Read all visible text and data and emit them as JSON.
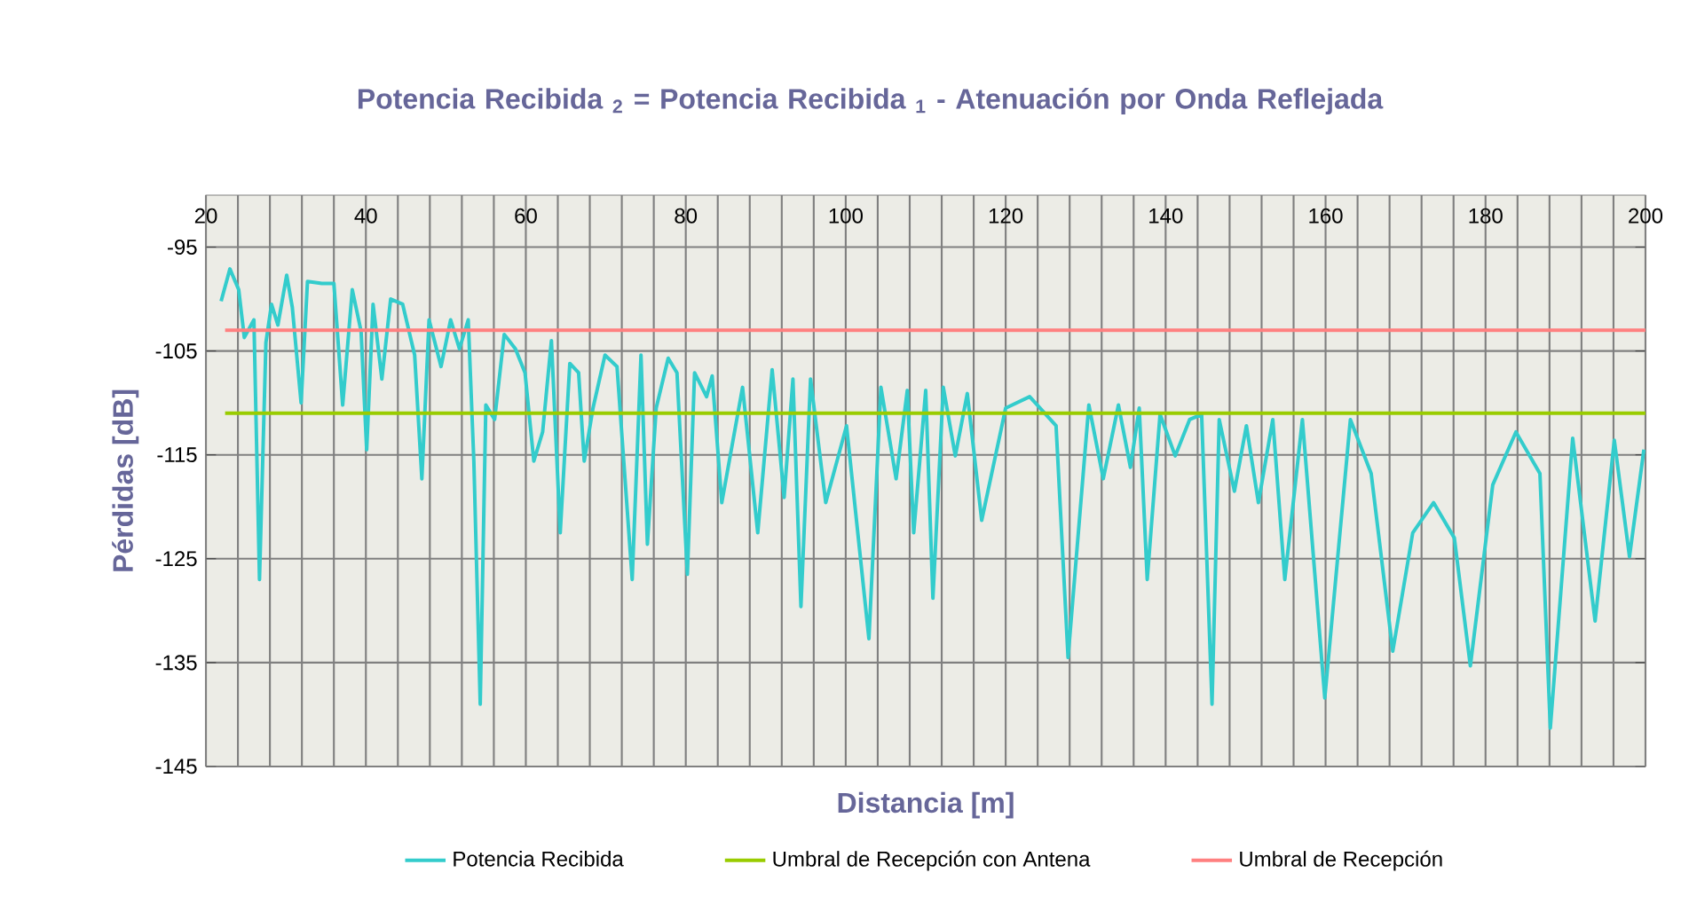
{
  "chart_data": {
    "type": "line",
    "title": "Potencia Recibida $_{2}$ = Potencia Recibida $_{1}$ - Atenuación por Onda Reflejada",
    "xlabel": "Distancia [m]",
    "ylabel": "Pérdidas [dB]",
    "xlim": [
      20,
      200
    ],
    "ylim": [
      -145,
      -90
    ],
    "xticks": [
      20,
      {
        "value": 24,
        "label": null
      },
      {
        "value": 28,
        "label": null
      },
      {
        "value": 32,
        "label": null
      },
      {
        "value": 36,
        "label": null
      },
      40,
      {
        "value": 44,
        "label": null
      },
      {
        "value": 48,
        "label": null
      },
      {
        "value": 52,
        "label": null
      },
      {
        "value": 56,
        "label": null
      },
      60,
      {
        "value": 64,
        "label": null
      },
      {
        "value": 68,
        "label": null
      },
      {
        "value": 72,
        "label": null
      },
      {
        "value": 76,
        "label": null
      },
      80,
      {
        "value": 84,
        "label": null
      },
      {
        "value": 88,
        "label": null
      },
      {
        "value": 92,
        "label": null
      },
      {
        "value": 96,
        "label": null
      },
      100,
      {
        "value": 104,
        "label": null
      },
      {
        "value": 108,
        "label": null
      },
      {
        "value": 112,
        "label": null
      },
      {
        "value": 116,
        "label": null
      },
      120,
      {
        "value": 124,
        "label": null
      },
      {
        "value": 128,
        "label": null
      },
      {
        "value": 132,
        "label": null
      },
      {
        "value": 136,
        "label": null
      },
      140,
      {
        "value": 144,
        "label": null
      },
      {
        "value": 148,
        "label": null
      },
      {
        "value": 152,
        "label": null
      },
      {
        "value": 156,
        "label": null
      },
      160,
      {
        "value": 164,
        "label": null
      },
      {
        "value": 168,
        "label": null
      },
      {
        "value": 172,
        "label": null
      },
      {
        "value": 176,
        "label": null
      },
      180,
      {
        "value": 184,
        "label": null
      },
      {
        "value": 188,
        "label": null
      },
      {
        "value": 192,
        "label": null
      },
      {
        "value": 196,
        "label": null
      },
      200
    ],
    "yticks": [
      -145,
      -135,
      -125,
      -115,
      -105,
      -95
    ],
    "grid": true,
    "legend": "bottom",
    "series": [
      {
        "name": "Potencia Recibida",
        "color": "#33cccc",
        "x": [
          21.9,
          23.0,
          24.1,
          24.8,
          26.0,
          26.7,
          27.5,
          28.2,
          29.0,
          30.1,
          30.8,
          31.9,
          32.7,
          34.5,
          36.0,
          37.1,
          38.3,
          39.4,
          40.1,
          40.9,
          42.0,
          43.1,
          44.6,
          46.1,
          47.0,
          47.9,
          49.4,
          50.6,
          51.7,
          52.8,
          53.5,
          54.3,
          55.0,
          56.1,
          57.3,
          58.7,
          59.9,
          61.0,
          62.1,
          63.2,
          64.3,
          65.5,
          66.6,
          67.3,
          68.4,
          69.9,
          71.4,
          73.3,
          74.4,
          75.2,
          76.3,
          77.8,
          78.9,
          80.2,
          81.1,
          82.6,
          83.3,
          84.5,
          87.1,
          89.0,
          90.8,
          92.3,
          93.4,
          94.4,
          95.6,
          97.5,
          100.1,
          102.9,
          104.4,
          106.3,
          107.7,
          108.5,
          110.0,
          110.9,
          112.2,
          113.7,
          115.2,
          117.0,
          120.0,
          123.0,
          126.3,
          127.8,
          130.4,
          132.2,
          134.1,
          135.6,
          136.7,
          137.7,
          139.3,
          141.2,
          143.0,
          144.5,
          145.8,
          146.7,
          148.6,
          150.1,
          151.6,
          153.4,
          154.9,
          157.1,
          159.9,
          163.1,
          165.7,
          168.4,
          170.9,
          173.5,
          176.1,
          178.1,
          180.9,
          183.8,
          186.8,
          188.1,
          190.9,
          193.7,
          196.1,
          198.0,
          199.8
        ],
        "values": [
          -100.2,
          -97.1,
          -99.1,
          -103.7,
          -102.0,
          -127.0,
          -104.2,
          -100.5,
          -102.5,
          -97.7,
          -100.8,
          -110.0,
          -98.3,
          -98.5,
          -98.5,
          -110.2,
          -99.1,
          -103.1,
          -114.5,
          -100.5,
          -107.7,
          -100.0,
          -100.5,
          -105.4,
          -117.3,
          -102.0,
          -106.5,
          -102.0,
          -104.8,
          -102.0,
          -115.6,
          -139.0,
          -110.2,
          -111.6,
          -103.4,
          -104.8,
          -107.1,
          -115.6,
          -112.8,
          -104.0,
          -122.5,
          -106.2,
          -107.1,
          -115.6,
          -110.5,
          -105.4,
          -106.5,
          -127.0,
          -105.4,
          -123.6,
          -110.5,
          -105.7,
          -107.1,
          -126.5,
          -107.1,
          -109.4,
          -107.4,
          -119.6,
          -108.5,
          -122.5,
          -106.8,
          -119.1,
          -107.7,
          -129.6,
          -107.7,
          -119.6,
          -112.2,
          -132.7,
          -108.5,
          -117.3,
          -108.8,
          -122.5,
          -108.8,
          -128.8,
          -108.5,
          -115.1,
          -109.1,
          -121.3,
          -110.5,
          -109.4,
          -112.2,
          -134.5,
          -110.2,
          -117.3,
          -110.2,
          -116.2,
          -110.5,
          -127.0,
          -111.1,
          -115.1,
          -111.6,
          -111.1,
          -139.0,
          -111.6,
          -118.5,
          -112.2,
          -119.6,
          -111.6,
          -127.0,
          -111.6,
          -138.4,
          -111.6,
          -116.8,
          -133.9,
          -122.5,
          -119.6,
          -123.0,
          -135.3,
          -117.9,
          -112.8,
          -116.8,
          -141.3,
          -113.4,
          -131.0,
          -113.6,
          -124.8,
          -114.5
        ]
      },
      {
        "name": "Umbral de Recepción con Antena",
        "color": "#99cc00",
        "x": [
          22.4,
          200
        ],
        "values": [
          -111,
          -111
        ]
      },
      {
        "name": "Umbral de Recepción",
        "color": "#ff8080",
        "x": [
          22.4,
          200
        ],
        "values": [
          -103,
          -103
        ]
      }
    ]
  }
}
